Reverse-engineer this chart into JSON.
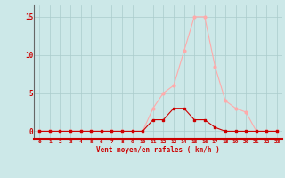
{
  "x": [
    0,
    1,
    2,
    3,
    4,
    5,
    6,
    7,
    8,
    9,
    10,
    11,
    12,
    13,
    14,
    15,
    16,
    17,
    18,
    19,
    20,
    21,
    22,
    23
  ],
  "rafales": [
    0,
    0,
    0,
    0,
    0,
    0,
    0,
    0,
    0,
    0,
    0,
    3.0,
    5.0,
    6.0,
    10.5,
    15.0,
    15.0,
    8.5,
    4.0,
    3.0,
    2.5,
    0,
    0,
    0
  ],
  "moyen": [
    0,
    0,
    0,
    0,
    0,
    0,
    0,
    0,
    0,
    0,
    0,
    1.5,
    1.5,
    3.0,
    3.0,
    1.5,
    1.5,
    0.5,
    0,
    0,
    0,
    0,
    0,
    0
  ],
  "color_rafales": "#ffaaaa",
  "color_moyen": "#cc0000",
  "bg_color": "#cce8e8",
  "grid_color": "#aacccc",
  "xlabel": "Vent moyen/en rafales ( km/h )",
  "yticks": [
    0,
    5,
    10,
    15
  ],
  "xlim": [
    -0.5,
    23.5
  ],
  "ylim": [
    -1.0,
    16.5
  ]
}
